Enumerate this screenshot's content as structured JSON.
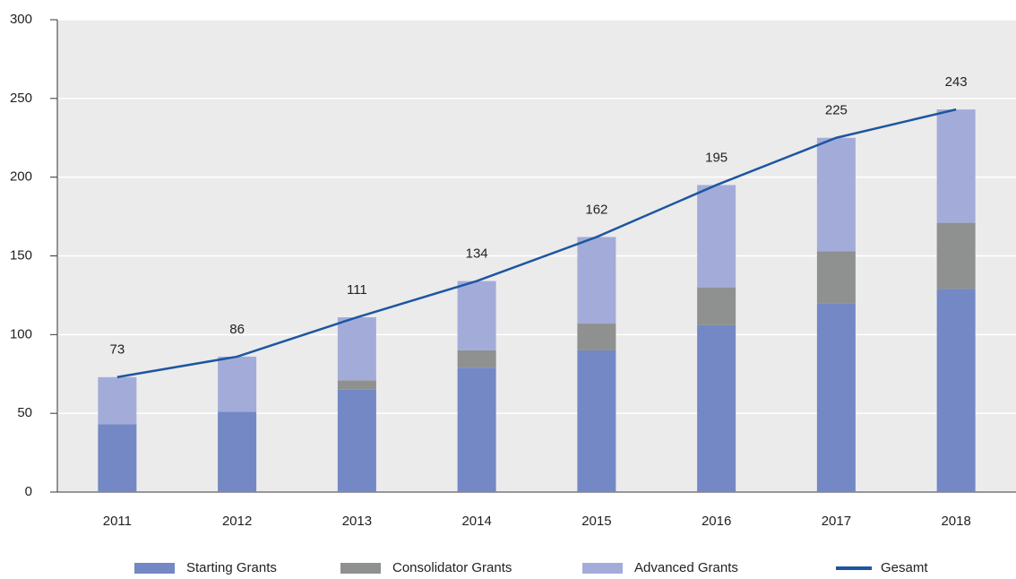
{
  "chart_data": {
    "type": "stacked_bar_line",
    "categories": [
      "2011",
      "2012",
      "2013",
      "2014",
      "2015",
      "2016",
      "2017",
      "2018"
    ],
    "series": [
      {
        "name": "Starting Grants",
        "color": "#7388c4",
        "type": "bar",
        "values": [
          43,
          51,
          65,
          79,
          90,
          106,
          120,
          129
        ]
      },
      {
        "name": "Consolidator Grants",
        "color": "#8e918f",
        "type": "bar",
        "values": [
          0,
          0,
          6,
          11,
          17,
          24,
          33,
          42
        ]
      },
      {
        "name": "Advanced Grants",
        "color": "#a3acd9",
        "type": "bar",
        "values": [
          30,
          35,
          40,
          44,
          55,
          65,
          72,
          72
        ]
      },
      {
        "name": "Gesamt",
        "color": "#1d56a0",
        "type": "line",
        "values": [
          73,
          86,
          111,
          134,
          162,
          195,
          225,
          243
        ]
      }
    ],
    "ylim": [
      0,
      300
    ],
    "yticks": [
      0,
      50,
      100,
      150,
      200,
      250,
      300
    ],
    "grid": true,
    "legend": "bottom"
  }
}
